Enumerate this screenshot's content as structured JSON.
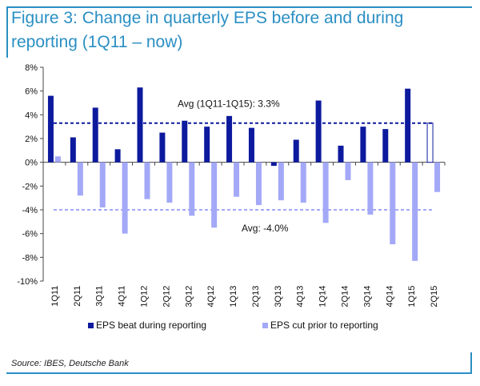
{
  "title": "Figure 3: Change in quarterly EPS before and during reporting (1Q11 – now)",
  "source": "Source: IBES, Deutsche Bank",
  "colors": {
    "accent": "#2a8fc4",
    "beat": "#0d1a9e",
    "cut": "#a3a8f7"
  },
  "chart_data": {
    "type": "bar",
    "categories": [
      "1Q11",
      "2Q11",
      "3Q11",
      "4Q11",
      "1Q12",
      "2Q12",
      "3Q12",
      "4Q12",
      "1Q13",
      "2Q13",
      "3Q13",
      "4Q13",
      "1Q14",
      "2Q14",
      "3Q14",
      "4Q14",
      "1Q15",
      "2Q15"
    ],
    "x_tick_labels": [
      "1Q11",
      "2Q11",
      "3Q11",
      "4Q11",
      "1Q12",
      "2Q12",
      "3Q12",
      "4Q12",
      "1Q13",
      "2Q13",
      "3Q13",
      "4Q13",
      "1Q14",
      "2Q14",
      "3Q14",
      "4Q14",
      "1Q15",
      "2Q15"
    ],
    "series": [
      {
        "name": "EPS beat during reporting",
        "values": [
          5.6,
          2.1,
          4.6,
          1.1,
          6.3,
          2.5,
          3.5,
          3.0,
          3.9,
          2.9,
          -0.3,
          1.9,
          5.2,
          1.4,
          3.0,
          2.8,
          6.2,
          3.3
        ]
      },
      {
        "name": "EPS cut prior to reporting",
        "values": [
          0.5,
          -2.8,
          -3.8,
          -6.0,
          -3.1,
          -3.4,
          -4.5,
          -5.5,
          -2.9,
          -3.6,
          -3.2,
          -3.4,
          -5.1,
          -1.5,
          -4.4,
          -6.9,
          -8.3,
          -2.5
        ]
      }
    ],
    "annotations": [
      {
        "text": "Avg (1Q11-1Q15): 3.3%",
        "value": 3.3
      },
      {
        "text": "Avg: -4.0%",
        "value": -4.0
      }
    ],
    "hollow_bar": {
      "category": "2Q15",
      "series": "EPS beat during reporting"
    },
    "y_tick_labels": [
      "8%",
      "6%",
      "4%",
      "2%",
      "0%",
      "-2%",
      "-4%",
      "-6%",
      "-8%",
      "-10%"
    ],
    "y_ticks": [
      8,
      6,
      4,
      2,
      0,
      -2,
      -4,
      -6,
      -8,
      -10
    ],
    "ylim": [
      -10,
      8
    ],
    "grid": false,
    "legend": "bottom"
  }
}
